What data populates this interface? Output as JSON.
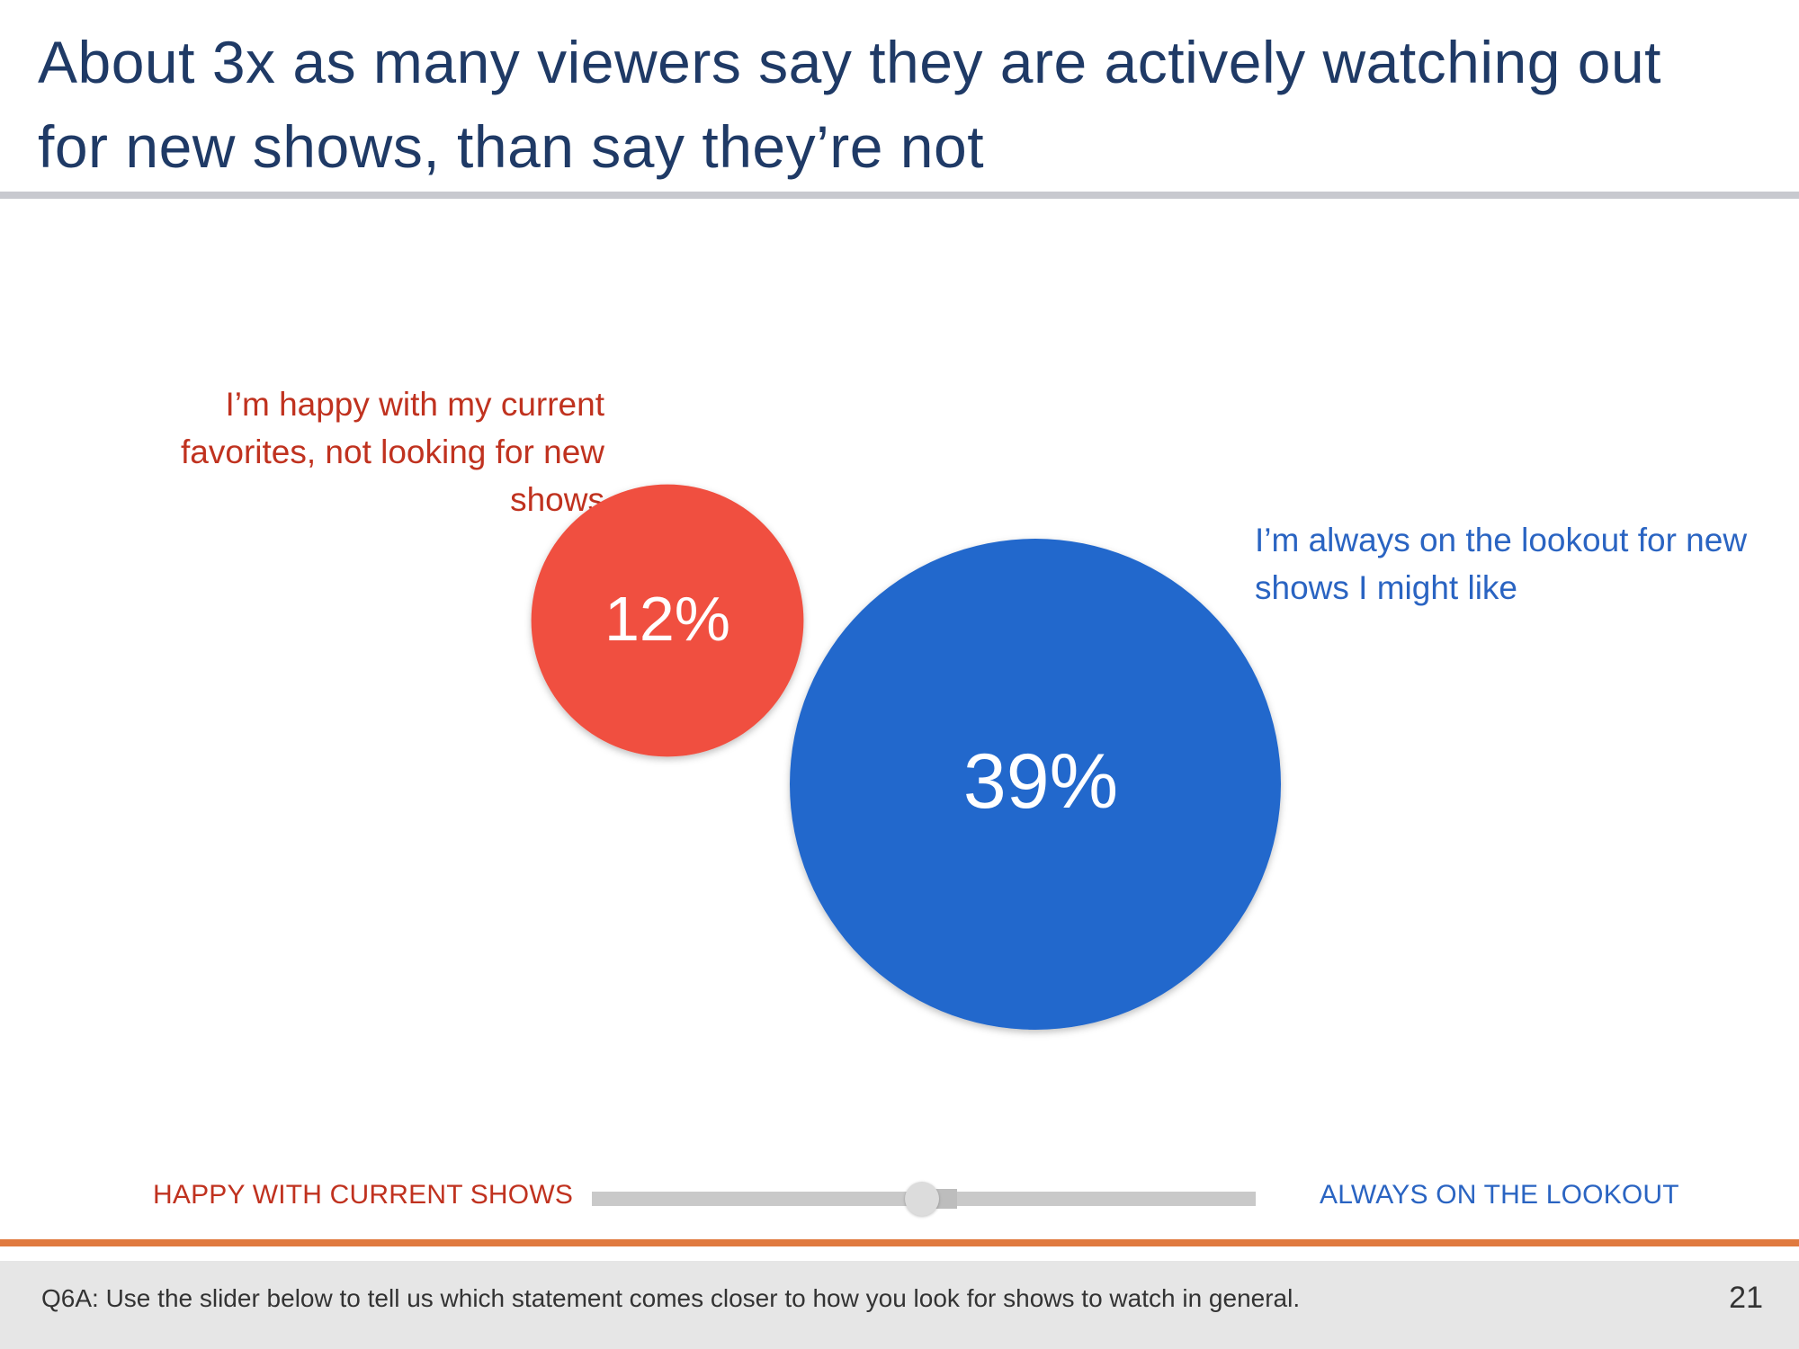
{
  "title": "About 3x as many viewers say they are actively watching out for new shows, than say they’re not",
  "colors": {
    "title": "#1f3a66",
    "happy": "#c0321f",
    "lookout": "#2a64c2",
    "bubble_happy": "#f0503f",
    "bubble_lookout": "#2267cc",
    "accent_rule": "#e07a3f"
  },
  "chart_data": {
    "type": "bubble",
    "title": "About 3x as many viewers say they are actively watching out for new shows, than say they’re not",
    "series": [
      {
        "name": "I’m happy with my current favorites, not looking for new shows",
        "value": 12,
        "unit": "%",
        "label": "12%"
      },
      {
        "name": "I’m always on the lookout for new shows I might like",
        "value": 39,
        "unit": "%",
        "label": "39%"
      }
    ]
  },
  "labels": {
    "happy_statement": "I’m happy with my current favorites, not looking for new shows",
    "lookout_statement": "I’m always on the lookout for new shows I might like"
  },
  "slider": {
    "left_label": "HAPPY WITH CURRENT SHOWS",
    "right_label": "ALWAYS ON THE LOOKOUT",
    "position": 0.51
  },
  "footer": {
    "note": "Q6A: Use the slider below to tell us which statement comes closer to how you look for shows to watch in general.",
    "page_number": "21"
  }
}
